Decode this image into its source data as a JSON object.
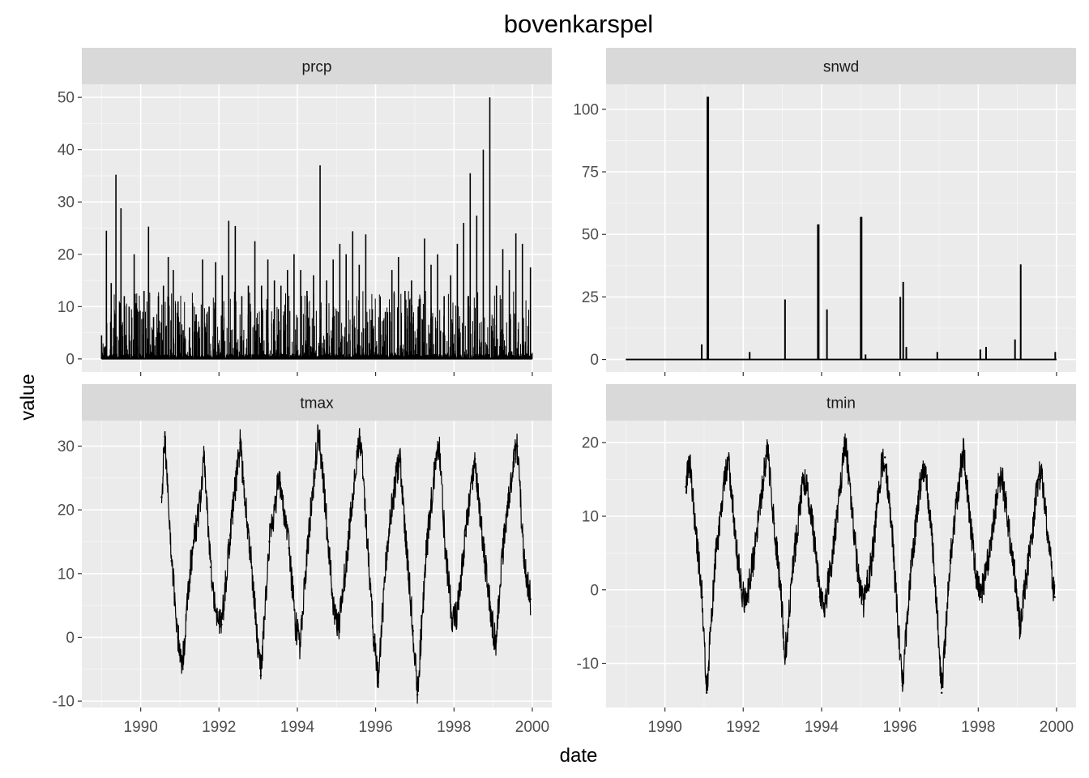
{
  "chart_data": {
    "type": "line",
    "title": "bovenkarspel",
    "xlabel": "date",
    "ylabel": "value",
    "x_range": [
      "1988-07-01",
      "2000-07-01"
    ],
    "x_ticks": [
      "1990",
      "1992",
      "1994",
      "1996",
      "1998",
      "2000"
    ],
    "grid": true,
    "layout": "2x2 facets, free y scales",
    "colors": {
      "panel_bg": "#ebebeb",
      "grid_major": "#ffffff",
      "strip_bg": "#d9d9d9",
      "line": "#000000",
      "tick_text": "#4d4d4d"
    },
    "facets": [
      {
        "name": "prcp",
        "ylim": [
          -2.5,
          52.5
        ],
        "y_ticks": [
          0,
          10,
          20,
          30,
          40,
          50
        ],
        "series": {
          "x": [
            "1989-01-01",
            "1989-02-15",
            "1989-04-01",
            "1989-05-15",
            "1989-07-01",
            "1989-08-01",
            "1989-09-15",
            "1989-11-01",
            "1989-12-15",
            "1990-02-01",
            "1990-03-15",
            "1990-05-01",
            "1990-06-15",
            "1990-08-01",
            "1990-09-15",
            "1990-11-01",
            "1990-12-15",
            "1991-02-01",
            "1991-04-01",
            "1991-06-01",
            "1991-08-01",
            "1991-10-01",
            "1991-12-01",
            "1992-02-01",
            "1992-04-01",
            "1992-06-01",
            "1992-08-01",
            "1992-10-01",
            "1992-12-01",
            "1993-02-01",
            "1993-04-01",
            "1993-06-01",
            "1993-08-01",
            "1993-10-01",
            "1993-12-01",
            "1994-02-01",
            "1994-04-01",
            "1994-06-01",
            "1994-08-01",
            "1994-10-01",
            "1994-12-01",
            "1995-02-01",
            "1995-04-01",
            "1995-06-01",
            "1995-08-01",
            "1995-10-01",
            "1995-12-01",
            "1996-02-01",
            "1996-04-01",
            "1996-06-01",
            "1996-08-01",
            "1996-10-01",
            "1996-12-01",
            "1997-02-01",
            "1997-04-01",
            "1997-06-01",
            "1997-08-01",
            "1997-10-01",
            "1997-12-01",
            "1998-02-01",
            "1998-04-01",
            "1998-06-01",
            "1998-08-01",
            "1998-10-01",
            "1998-12-01",
            "1999-02-01",
            "1999-04-01",
            "1999-06-01",
            "1999-08-01",
            "1999-10-01",
            "1999-12-15"
          ],
          "y": [
            4.5,
            24.5,
            14.5,
            35.2,
            28.8,
            12,
            10,
            20,
            9,
            13,
            25.3,
            8,
            12,
            14,
            19.5,
            17,
            11,
            5.5,
            6,
            8.5,
            19,
            10,
            18.5,
            16,
            26.4,
            25.4,
            12,
            14,
            22.5,
            14,
            19,
            15,
            14,
            17,
            20,
            17,
            13,
            16,
            37,
            15,
            19,
            22,
            20,
            24.4,
            18,
            23.8,
            9.5,
            8,
            9,
            17,
            19.5,
            13,
            15,
            10,
            23,
            18,
            20,
            12,
            16,
            22,
            26,
            35.5,
            27.4,
            40,
            50,
            14,
            21,
            17,
            24,
            22,
            17.5
          ]
        }
      },
      {
        "name": "snwd",
        "ylim": [
          -5,
          110
        ],
        "y_ticks": [
          0,
          25,
          50,
          75,
          100
        ],
        "series": {
          "x": [
            "1990-12-10",
            "1991-02-05",
            "1992-03-01",
            "1993-01-25",
            "1993-12-01",
            "1994-02-20",
            "1995-01-05",
            "1995-02-15",
            "1996-01-05",
            "1996-02-01",
            "1996-03-01",
            "1996-12-15",
            "1998-01-20",
            "1998-03-15",
            "1998-12-10",
            "1999-02-01",
            "1999-12-20"
          ],
          "y": [
            6,
            105,
            3,
            24,
            54,
            20,
            57,
            2,
            25,
            31,
            5,
            3,
            4,
            5,
            8,
            38,
            3
          ]
        }
      },
      {
        "name": "tmax",
        "ylim": [
          -11,
          34
        ],
        "y_ticks": [
          -10,
          0,
          10,
          20,
          30
        ],
        "series": {
          "x": [
            "1990-07-15",
            "1990-08-15",
            "1990-10-15",
            "1990-12-15",
            "1991-01-25",
            "1991-04-15",
            "1991-07-15",
            "1991-08-15",
            "1991-10-15",
            "1991-12-15",
            "1992-01-25",
            "1992-04-15",
            "1992-07-15",
            "1992-08-15",
            "1992-10-15",
            "1992-12-15",
            "1993-01-25",
            "1993-04-15",
            "1993-07-15",
            "1993-08-15",
            "1993-10-15",
            "1993-12-15",
            "1994-01-25",
            "1994-04-15",
            "1994-07-15",
            "1994-08-15",
            "1994-10-15",
            "1994-12-15",
            "1995-01-25",
            "1995-04-15",
            "1995-07-15",
            "1995-08-15",
            "1995-10-15",
            "1995-12-15",
            "1996-01-25",
            "1996-04-15",
            "1996-07-15",
            "1996-08-15",
            "1996-10-15",
            "1996-12-15",
            "1997-01-25",
            "1997-04-15",
            "1997-07-15",
            "1997-08-15",
            "1997-10-15",
            "1997-12-15",
            "1998-01-25",
            "1998-04-15",
            "1998-07-15",
            "1998-08-15",
            "1998-10-15",
            "1998-12-15",
            "1999-01-25",
            "1999-04-15",
            "1999-07-15",
            "1999-08-15",
            "1999-10-15",
            "1999-12-15"
          ],
          "y": [
            22,
            31.5,
            12,
            0,
            -4.5,
            12,
            22,
            28.5,
            11,
            3,
            2,
            16,
            30.5,
            25,
            14,
            2,
            -6,
            15,
            25,
            22,
            14,
            2,
            -1,
            16,
            32,
            28,
            15,
            3,
            2,
            14,
            30,
            30.5,
            15,
            0,
            -7,
            14,
            26,
            28,
            14,
            1,
            -9,
            13,
            28,
            30.5,
            13,
            3,
            3,
            16,
            28,
            22,
            12,
            3,
            -1,
            16,
            28,
            30,
            12,
            6
          ]
        }
      },
      {
        "name": "tmin",
        "ylim": [
          -16,
          23
        ],
        "y_ticks": [
          -10,
          0,
          10,
          20
        ],
        "series": {
          "x": [
            "1990-07-15",
            "1990-08-15",
            "1990-10-15",
            "1990-12-15",
            "1991-01-25",
            "1991-04-15",
            "1991-07-15",
            "1991-08-15",
            "1991-10-15",
            "1991-12-15",
            "1992-01-25",
            "1992-04-15",
            "1992-07-15",
            "1992-08-15",
            "1992-10-15",
            "1992-12-15",
            "1993-01-25",
            "1993-04-15",
            "1993-07-15",
            "1993-08-15",
            "1993-10-15",
            "1993-12-15",
            "1994-01-25",
            "1994-04-15",
            "1994-07-15",
            "1994-08-15",
            "1994-10-15",
            "1994-12-15",
            "1995-01-25",
            "1995-04-15",
            "1995-07-15",
            "1995-08-15",
            "1995-10-15",
            "1995-12-15",
            "1996-01-25",
            "1996-04-15",
            "1996-07-15",
            "1996-08-15",
            "1996-10-15",
            "1996-12-15",
            "1997-01-25",
            "1997-04-15",
            "1997-07-15",
            "1997-08-15",
            "1997-10-15",
            "1997-12-15",
            "1998-01-25",
            "1998-04-15",
            "1998-07-15",
            "1998-08-15",
            "1998-10-15",
            "1998-12-15",
            "1999-01-25",
            "1999-04-15",
            "1999-07-15",
            "1999-08-15",
            "1999-10-15",
            "1999-12-15"
          ],
          "y": [
            14,
            18,
            8,
            -1,
            -14,
            4,
            15,
            18,
            8,
            0,
            -2,
            5,
            16,
            19,
            9,
            0,
            -9,
            4,
            15,
            14,
            8,
            -1,
            -3,
            5,
            17,
            20,
            10,
            1,
            -2,
            4,
            17,
            18,
            9,
            -5,
            -13,
            3,
            15,
            17,
            9,
            -3,
            -14,
            4,
            16,
            19,
            10,
            1,
            -1,
            5,
            15,
            15,
            8,
            1,
            -5,
            4,
            15,
            16,
            7,
            -1
          ]
        }
      }
    ]
  }
}
